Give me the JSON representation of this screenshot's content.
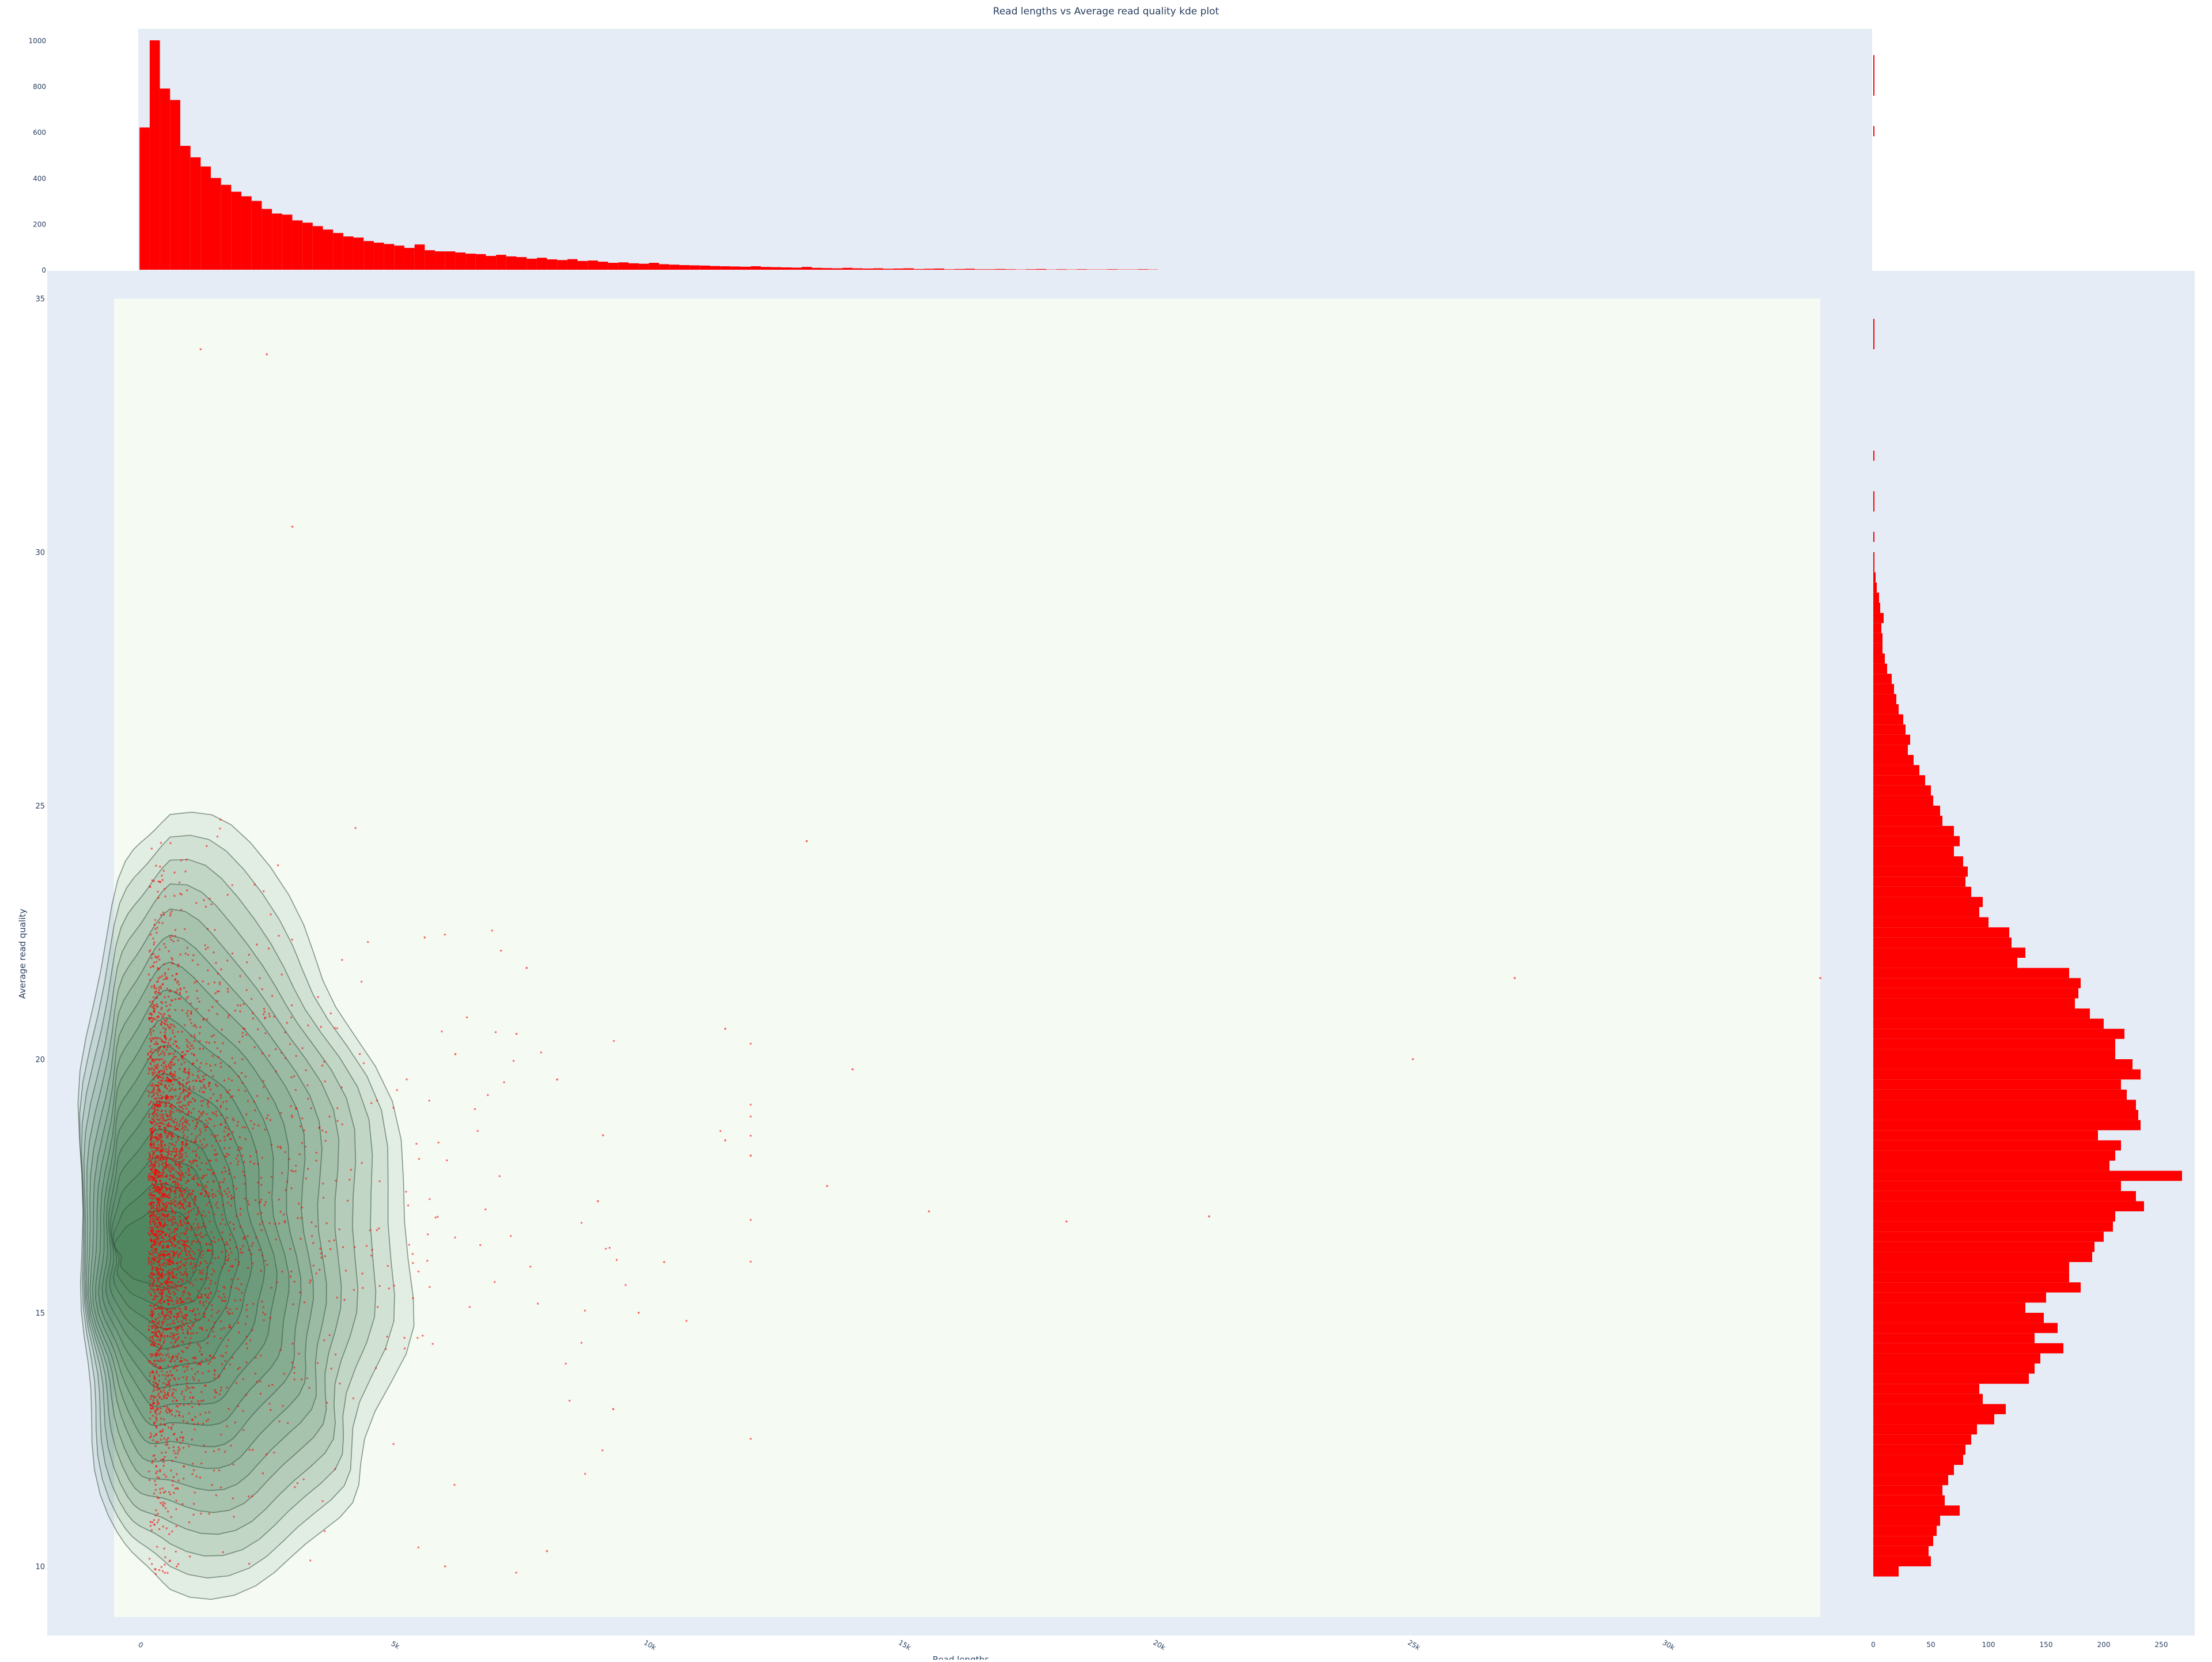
{
  "chart_data": [
    {
      "type": "bar",
      "role": "top-histogram",
      "title": "Read lengths vs Average read quality kde plot",
      "x_range": [
        0,
        33000
      ],
      "ylim": [
        0,
        1000
      ],
      "y_ticks": [
        0,
        200,
        400,
        600,
        800,
        1000
      ],
      "bin_width": 200,
      "color": "#ff0000",
      "values": [
        620,
        1000,
        790,
        740,
        540,
        490,
        450,
        400,
        370,
        340,
        320,
        300,
        265,
        245,
        240,
        215,
        205,
        190,
        175,
        160,
        145,
        140,
        125,
        118,
        112,
        105,
        95,
        110,
        85,
        80,
        80,
        75,
        70,
        68,
        60,
        65,
        58,
        55,
        48,
        52,
        45,
        42,
        46,
        38,
        40,
        35,
        30,
        32,
        28,
        26,
        30,
        24,
        22,
        20,
        19,
        18,
        16,
        15,
        14,
        13,
        15,
        12,
        11,
        10,
        9,
        12,
        8,
        7,
        6,
        8,
        6,
        5,
        6,
        4,
        5,
        6,
        3,
        4,
        5,
        2,
        3,
        4,
        2,
        2,
        3,
        2,
        1,
        2,
        3,
        1,
        2,
        1,
        2,
        1,
        1,
        2,
        1,
        1,
        2,
        1
      ]
    },
    {
      "type": "scatter",
      "role": "main-kde",
      "xlabel": "Read lengths",
      "ylabel": "Average read quality",
      "xlim": [
        -500,
        33000
      ],
      "ylim": [
        9,
        35
      ],
      "x_ticks": [
        0,
        5000,
        10000,
        15000,
        20000,
        25000,
        30000
      ],
      "x_tick_labels": [
        "0",
        "5k",
        "10k",
        "15k",
        "20k",
        "25k",
        "30k"
      ],
      "y_ticks": [
        10,
        15,
        20,
        25,
        30,
        35
      ],
      "point_color": "#ff0000",
      "kde_fill": "#1f6b3a",
      "kde_center": [
        600,
        16.2
      ],
      "kde_levels": 16,
      "sample_points": [
        [
          3000,
          30.5
        ],
        [
          1200,
          34
        ],
        [
          2500,
          33.9
        ],
        [
          13100,
          24.3
        ],
        [
          14000,
          19.8
        ],
        [
          9100,
          18.5
        ],
        [
          13500,
          17.5
        ],
        [
          15500,
          17
        ],
        [
          18200,
          16.8
        ],
        [
          21000,
          16.9
        ],
        [
          27000,
          21.6
        ],
        [
          9000,
          17.2
        ],
        [
          11500,
          18.4
        ],
        [
          12000,
          18.1
        ],
        [
          10300,
          16
        ],
        [
          9800,
          15
        ],
        [
          25000,
          20
        ],
        [
          33000,
          21.6
        ],
        [
          8200,
          19.6
        ],
        [
          7400,
          20.5
        ],
        [
          9300,
          13.1
        ],
        [
          6000,
          10
        ],
        [
          8000,
          10.3
        ],
        [
          6200,
          20.1
        ],
        [
          7600,
          21.8
        ],
        [
          5600,
          22.4
        ],
        [
          11500,
          20.6
        ]
      ],
      "n_points": 3800
    },
    {
      "type": "bar",
      "role": "right-histogram",
      "orientation": "horizontal",
      "y_range": [
        9,
        35
      ],
      "xlim": [
        0,
        250
      ],
      "x_ticks": [
        0,
        50,
        100,
        150,
        200,
        250
      ],
      "bin_start": 9.8,
      "bin_width": 0.2,
      "color": "#ff0000",
      "values": [
        22,
        50,
        48,
        52,
        55,
        58,
        75,
        62,
        60,
        65,
        70,
        78,
        80,
        85,
        90,
        105,
        115,
        95,
        92,
        135,
        140,
        145,
        165,
        140,
        160,
        148,
        132,
        150,
        180,
        170,
        170,
        190,
        192,
        200,
        208,
        210,
        235,
        228,
        215,
        268,
        205,
        210,
        215,
        195,
        232,
        230,
        228,
        220,
        215,
        232,
        225,
        210,
        210,
        218,
        200,
        188,
        175,
        178,
        180,
        170,
        125,
        132,
        120,
        118,
        100,
        92,
        95,
        85,
        80,
        82,
        78,
        70,
        75,
        70,
        60,
        58,
        52,
        50,
        45,
        40,
        35,
        30,
        32,
        28,
        26,
        22,
        20,
        18,
        16,
        12,
        10,
        8,
        8,
        7,
        9,
        6,
        5,
        3,
        2,
        1,
        1,
        0,
        1,
        0,
        0,
        1,
        1,
        0,
        0,
        0,
        1,
        0,
        0,
        0,
        0,
        0,
        0,
        0,
        0,
        0,
        0,
        1,
        1,
        1,
        0,
        0,
        0,
        0,
        0,
        0,
        0,
        0,
        0,
        0,
        0,
        0,
        0,
        0,
        0,
        0,
        0,
        0,
        1,
        0,
        0,
        0,
        1,
        1,
        1,
        1
      ]
    }
  ]
}
